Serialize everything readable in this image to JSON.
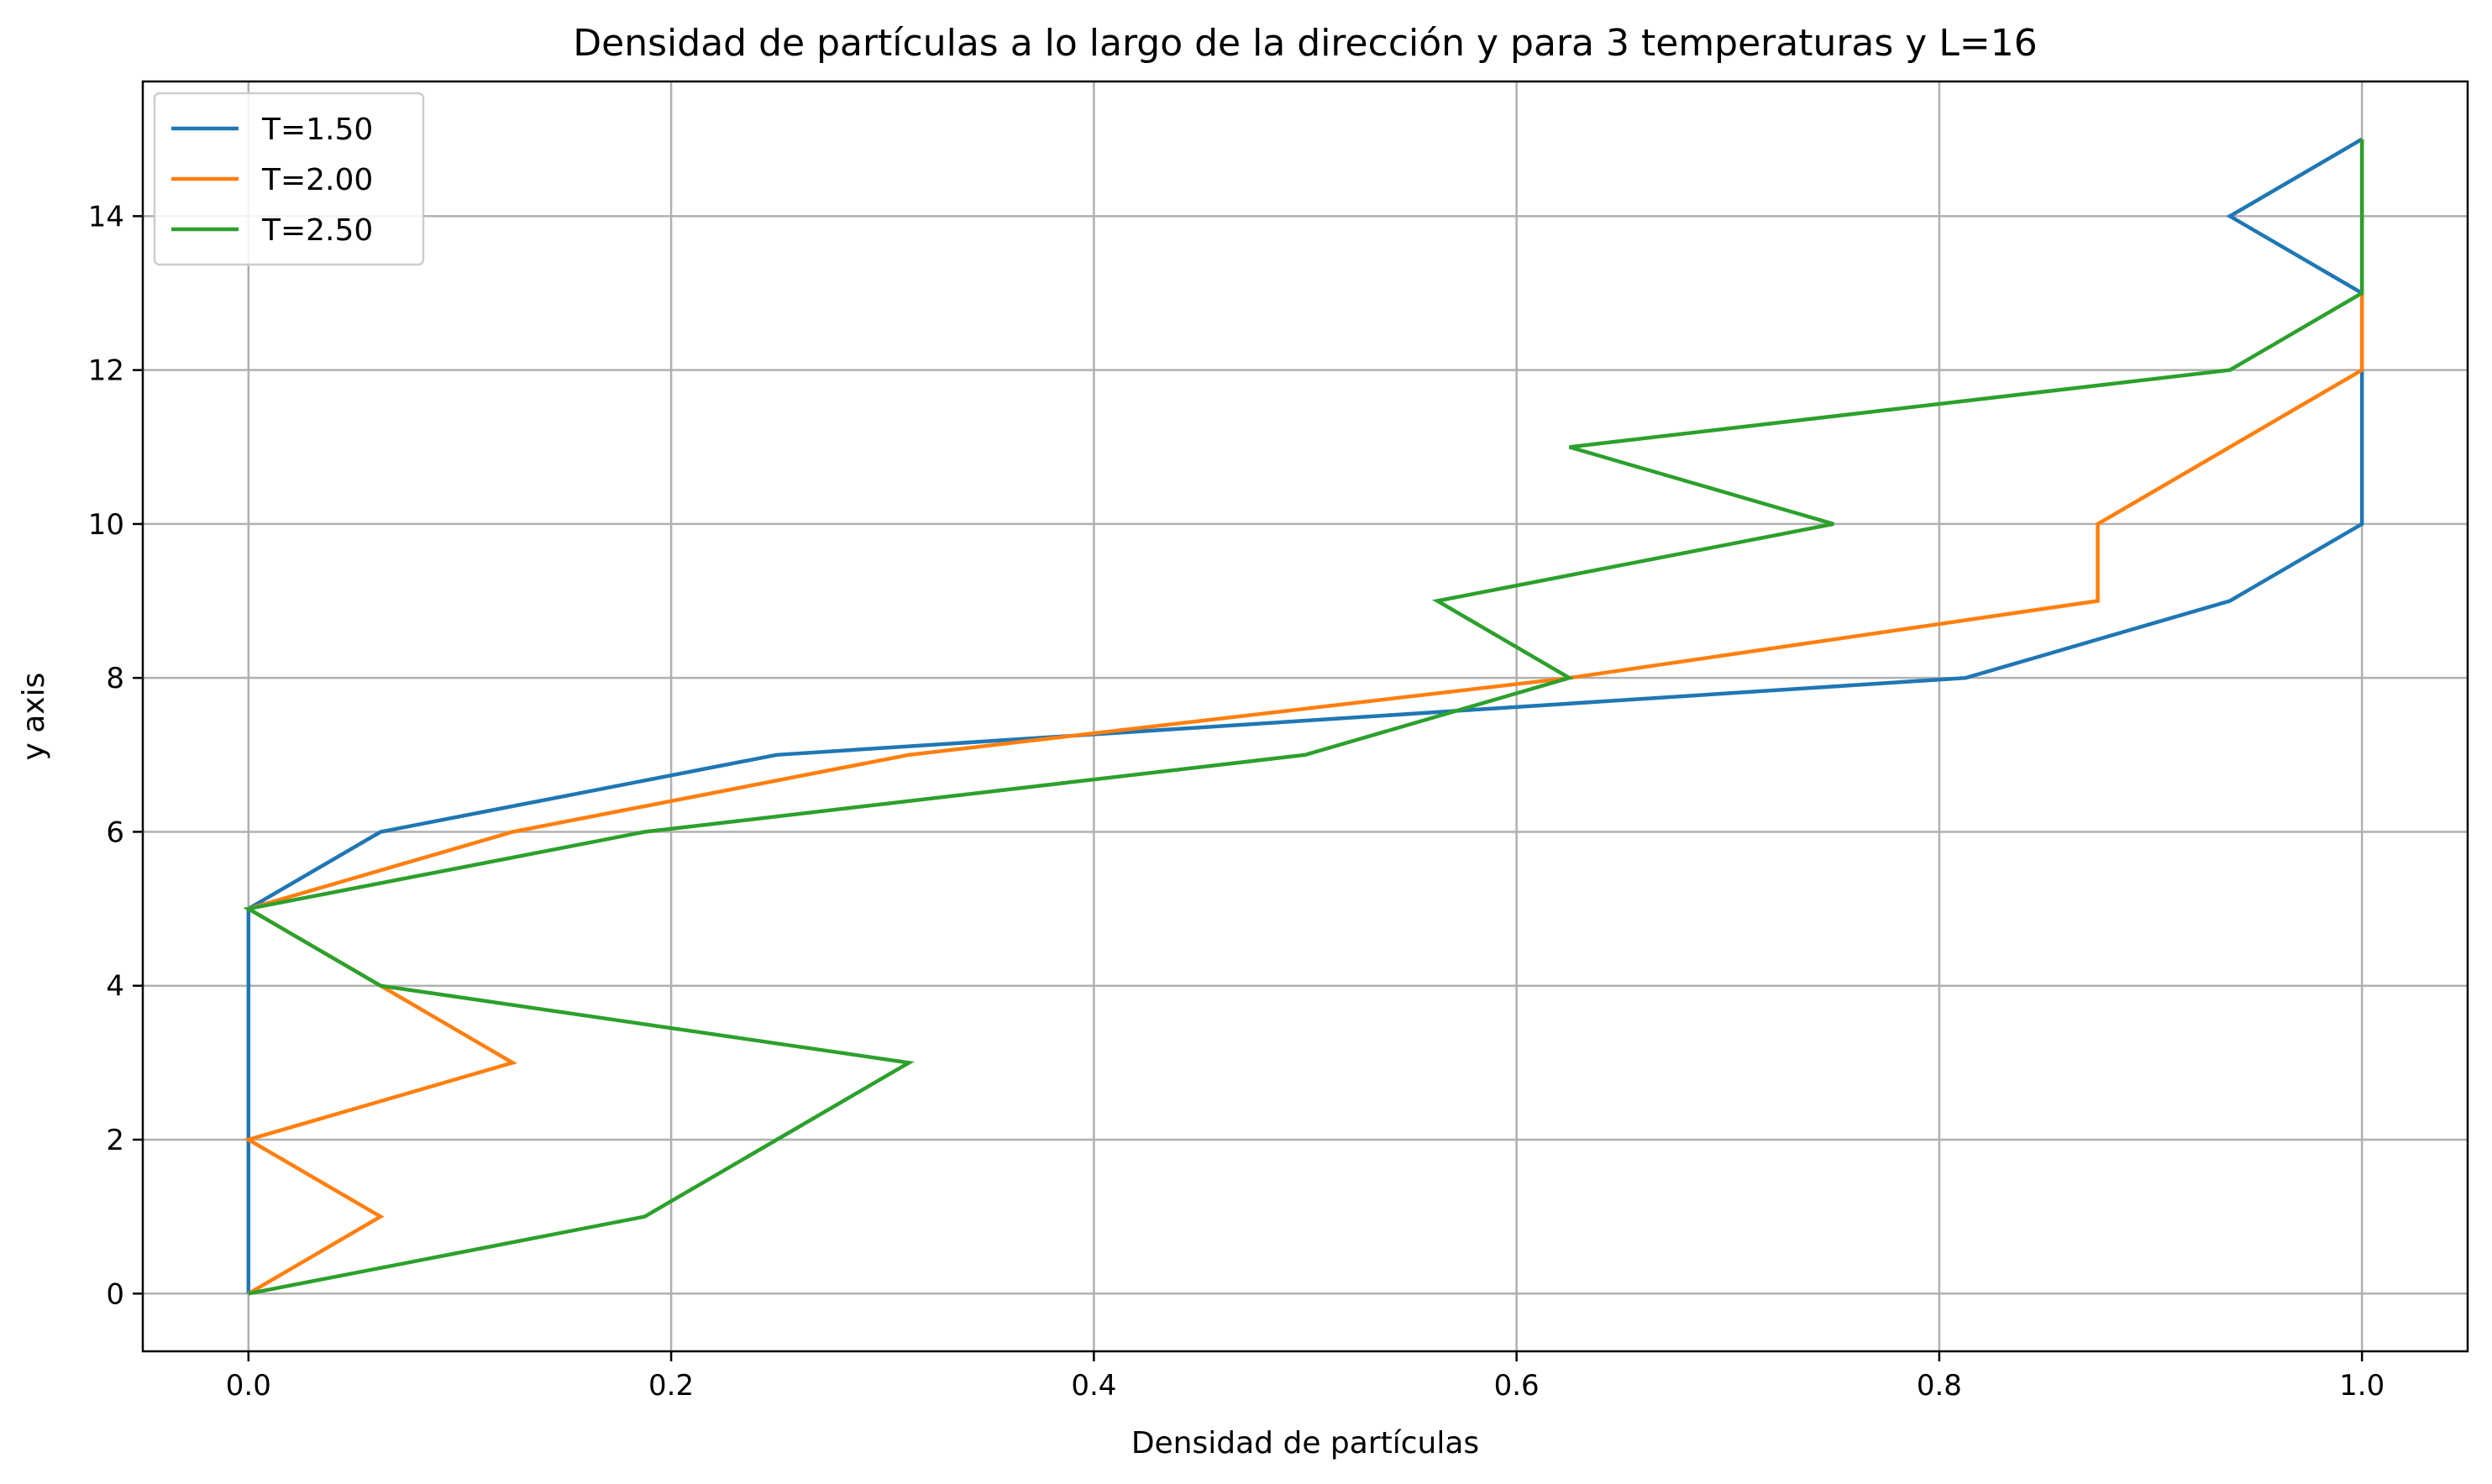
{
  "chart_data": {
    "type": "line",
    "title": "Densidad de partículas a lo largo de la dirección y para 3 temperaturas y L=16",
    "xlabel": "Densidad de partículas",
    "ylabel": "y axis",
    "xlim": [
      -0.05,
      1.05
    ],
    "ylim": [
      -0.75,
      15.75
    ],
    "xticks": [
      0.0,
      0.2,
      0.4,
      0.6,
      0.8,
      1.0
    ],
    "xtick_labels": [
      "0.0",
      "0.2",
      "0.4",
      "0.6",
      "0.8",
      "1.0"
    ],
    "yticks": [
      0,
      2,
      4,
      6,
      8,
      10,
      12,
      14
    ],
    "ytick_labels": [
      "0",
      "2",
      "4",
      "6",
      "8",
      "10",
      "12",
      "14"
    ],
    "grid": true,
    "legend_position": "top-left",
    "y": [
      0,
      1,
      2,
      3,
      4,
      5,
      6,
      7,
      8,
      9,
      10,
      11,
      12,
      13,
      14,
      15
    ],
    "series": [
      {
        "name": "T=1.50",
        "color": "#1f77b4",
        "x": [
          0.0,
          0.0,
          0.0,
          0.0,
          0.0,
          0.0,
          0.0625,
          0.25,
          0.8125,
          0.9375,
          1.0,
          1.0,
          1.0,
          1.0,
          0.9375,
          1.0
        ]
      },
      {
        "name": "T=2.00",
        "color": "#ff7f0e",
        "x": [
          0.0,
          0.0625,
          0.0,
          0.125,
          0.0625,
          0.0,
          0.125,
          0.3125,
          0.625,
          0.875,
          0.875,
          0.9375,
          1.0,
          1.0,
          1.0,
          1.0
        ]
      },
      {
        "name": "T=2.50",
        "color": "#2ca02c",
        "x": [
          0.0,
          0.1875,
          0.25,
          0.3125,
          0.0625,
          0.0,
          0.1875,
          0.5,
          0.625,
          0.5625,
          0.75,
          0.625,
          0.9375,
          1.0,
          1.0,
          1.0
        ]
      }
    ]
  }
}
